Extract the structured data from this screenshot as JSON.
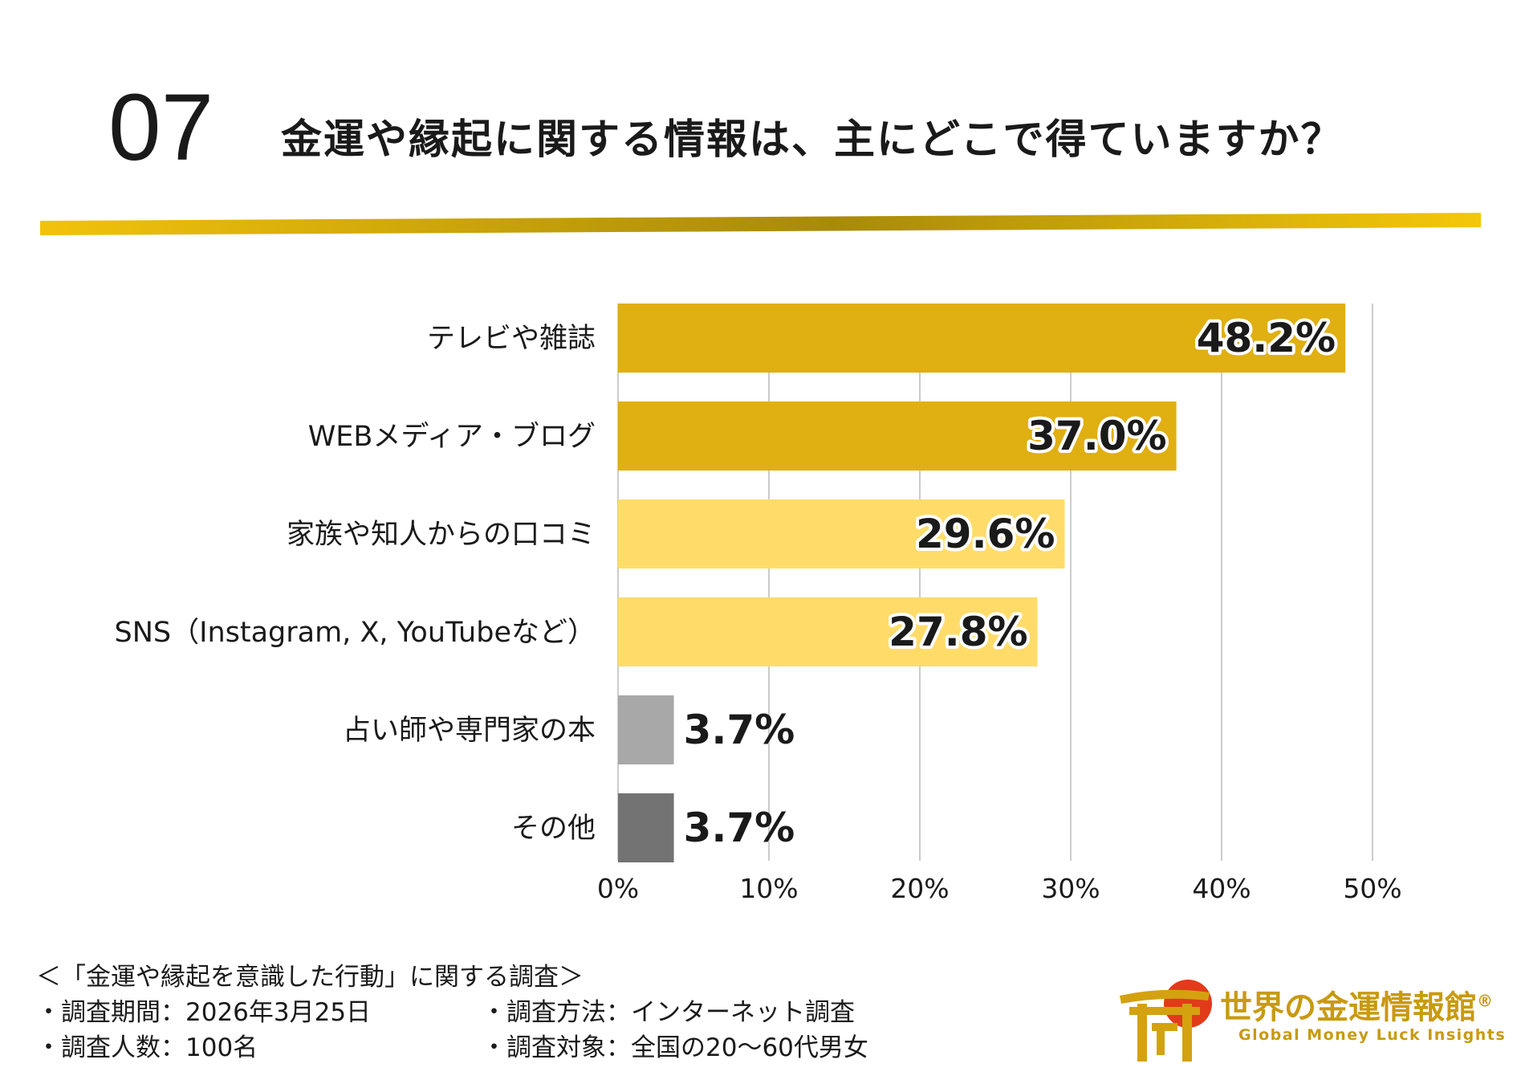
{
  "header": {
    "number": "07",
    "title": "金運や縁起に関する情報は、主にどこで得ていますか？"
  },
  "colors": {
    "rule_gold": "#c9a20f",
    "bar_dark_gold": "#e0af12",
    "bar_light_gold": "#ffdc6a",
    "bar_light_gray": "#a8a8a8",
    "bar_dark_gray": "#737373",
    "grid": "#cccccc"
  },
  "chart_data": {
    "type": "bar",
    "orientation": "horizontal",
    "title": "金運や縁起に関する情報は、主にどこで得ていますか？",
    "categories": [
      "テレビや雑誌",
      "WEBメディア・ブログ",
      "家族や知人からの口コミ",
      "SNS（Instagram, X, YouTubeなど）",
      "占い師や専門家の本",
      "その他"
    ],
    "values": [
      48.2,
      37.0,
      29.6,
      27.8,
      3.7,
      3.7
    ],
    "value_labels": [
      "48.2%",
      "37.0%",
      "29.6%",
      "27.8%",
      "3.7%",
      "3.7%"
    ],
    "bar_colors": [
      "#e0af12",
      "#e0af12",
      "#ffdc6a",
      "#ffdc6a",
      "#a8a8a8",
      "#737373"
    ],
    "xlim": [
      0,
      50
    ],
    "x_ticks": [
      0,
      10,
      20,
      30,
      40,
      50
    ],
    "x_tick_labels": [
      "0%",
      "10%",
      "20%",
      "30%",
      "40%",
      "50%"
    ],
    "grid": true,
    "xlabel": "",
    "ylabel": ""
  },
  "footer": {
    "survey_title": "＜「金運や縁起を意識した行動」に関する調査＞",
    "left": [
      "・調査期間：2026年3月25日",
      "・調査人数：100名"
    ],
    "right": [
      "・調査方法：インターネット調査",
      "・調査対象：全国の20～60代男女"
    ]
  },
  "logo": {
    "name": "世界の金運情報館",
    "registered": "®",
    "subtitle": "Global Money Luck Insights"
  }
}
